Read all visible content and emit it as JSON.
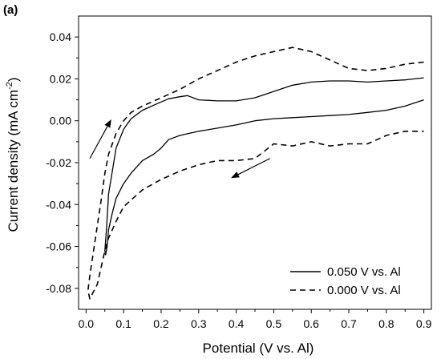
{
  "chart_data": {
    "type": "line",
    "panel_label": "(a)",
    "title": "",
    "xlabel": "Potential (V vs. Al)",
    "ylabel_parts": [
      "Current density (mA cm",
      "-2",
      ")"
    ],
    "xlim": [
      -0.02,
      0.92
    ],
    "ylim": [
      -0.09,
      0.05
    ],
    "xticks": [
      0.0,
      0.1,
      0.2,
      0.3,
      0.4,
      0.5,
      0.6,
      0.7,
      0.8,
      0.9
    ],
    "xtick_labels": [
      "0.0",
      "0.1",
      "0.2",
      "0.3",
      "0.4",
      "0.5",
      "0.6",
      "0.7",
      "0.8",
      "0.9"
    ],
    "yticks": [
      -0.08,
      -0.06,
      -0.04,
      -0.02,
      0.0,
      0.02,
      0.04
    ],
    "ytick_labels": [
      "-0.08",
      "-0.06",
      "-0.04",
      "-0.02",
      "0.00",
      "0.02",
      "0.04"
    ],
    "grid": false,
    "legend_position": "bottom-right",
    "series": [
      {
        "name": "0.050 V vs. Al",
        "style": "solid",
        "color": "#000000",
        "x": [
          0.9,
          0.85,
          0.8,
          0.75,
          0.7,
          0.65,
          0.6,
          0.55,
          0.5,
          0.45,
          0.4,
          0.35,
          0.3,
          0.27,
          0.25,
          0.22,
          0.2,
          0.15,
          0.12,
          0.1,
          0.08,
          0.07,
          0.06,
          0.055,
          0.05,
          0.052,
          0.056,
          0.06,
          0.07,
          0.08,
          0.1,
          0.12,
          0.15,
          0.18,
          0.2,
          0.22,
          0.25,
          0.3,
          0.35,
          0.4,
          0.45,
          0.5,
          0.55,
          0.6,
          0.65,
          0.7,
          0.75,
          0.8,
          0.85,
          0.9
        ],
        "y": [
          0.0205,
          0.0195,
          0.019,
          0.0185,
          0.019,
          0.019,
          0.0185,
          0.017,
          0.014,
          0.011,
          0.0095,
          0.0095,
          0.01,
          0.012,
          0.0115,
          0.0105,
          0.009,
          0.005,
          0.001,
          -0.004,
          -0.013,
          -0.024,
          -0.035,
          -0.05,
          -0.062,
          -0.064,
          -0.06,
          -0.052,
          -0.044,
          -0.037,
          -0.03,
          -0.025,
          -0.019,
          -0.016,
          -0.013,
          -0.009,
          -0.007,
          -0.005,
          -0.0035,
          -0.002,
          0.0,
          0.001,
          0.0015,
          0.002,
          0.0025,
          0.003,
          0.004,
          0.005,
          0.007,
          0.01
        ]
      },
      {
        "name": "0.000 V vs. Al",
        "style": "dashed",
        "color": "#000000",
        "x": [
          0.9,
          0.85,
          0.8,
          0.75,
          0.7,
          0.65,
          0.6,
          0.55,
          0.5,
          0.45,
          0.4,
          0.35,
          0.3,
          0.25,
          0.2,
          0.15,
          0.12,
          0.1,
          0.08,
          0.06,
          0.05,
          0.04,
          0.03,
          0.02,
          0.01,
          0.005,
          0.01,
          0.03,
          0.05,
          0.06,
          0.08,
          0.1,
          0.15,
          0.2,
          0.25,
          0.3,
          0.35,
          0.4,
          0.45,
          0.5,
          0.55,
          0.6,
          0.65,
          0.7,
          0.75,
          0.8,
          0.85,
          0.9
        ],
        "y": [
          0.028,
          0.027,
          0.025,
          0.024,
          0.025,
          0.029,
          0.033,
          0.035,
          0.033,
          0.031,
          0.028,
          0.024,
          0.02,
          0.015,
          0.011,
          0.007,
          0.004,
          0.0,
          -0.006,
          -0.016,
          -0.025,
          -0.038,
          -0.05,
          -0.062,
          -0.074,
          -0.081,
          -0.085,
          -0.078,
          -0.062,
          -0.056,
          -0.048,
          -0.041,
          -0.033,
          -0.028,
          -0.024,
          -0.021,
          -0.019,
          -0.019,
          -0.018,
          -0.011,
          -0.012,
          -0.01,
          -0.012,
          -0.011,
          -0.011,
          -0.007,
          -0.005,
          -0.005
        ]
      }
    ],
    "arrows": [
      {
        "from": [
          0.01,
          -0.018
        ],
        "to": [
          0.065,
          0.0
        ]
      },
      {
        "from": [
          0.49,
          -0.018
        ],
        "to": [
          0.39,
          -0.027
        ]
      }
    ]
  }
}
